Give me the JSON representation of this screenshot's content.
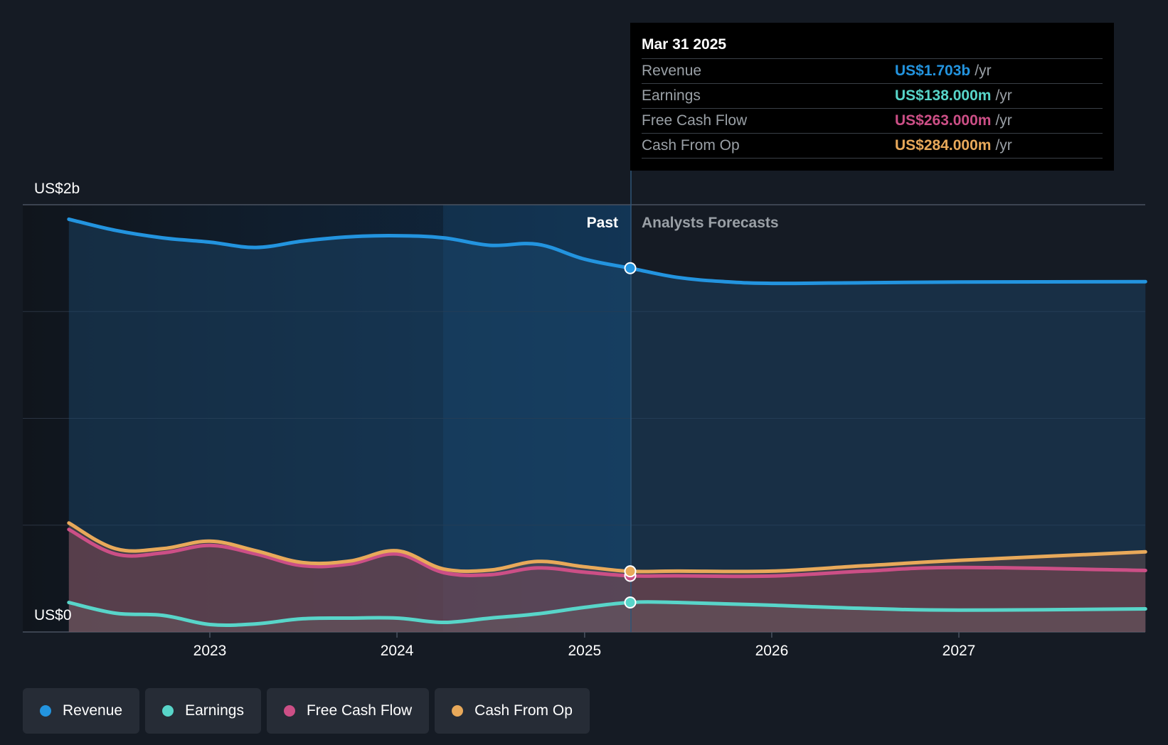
{
  "chart_data": {
    "type": "area",
    "y_unit_labels": {
      "top": "US$2b",
      "bottom": "US$0"
    },
    "ylim": [
      0,
      2000
    ],
    "x_ticks": [
      "2023",
      "2024",
      "2025",
      "2026",
      "2027"
    ],
    "past_label": "Past",
    "forecast_label": "Analysts Forecasts",
    "divider_date": "2025-03-31",
    "series": [
      {
        "name": "Revenue",
        "color": "#2394df",
        "points": [
          [
            "2022-04-01",
            1932
          ],
          [
            "2022-07-01",
            1880
          ],
          [
            "2022-10-01",
            1845
          ],
          [
            "2023-01-01",
            1825
          ],
          [
            "2023-04-01",
            1800
          ],
          [
            "2023-07-01",
            1830
          ],
          [
            "2023-10-01",
            1850
          ],
          [
            "2024-01-01",
            1855
          ],
          [
            "2024-04-01",
            1845
          ],
          [
            "2024-07-01",
            1810
          ],
          [
            "2024-10-01",
            1815
          ],
          [
            "2025-01-01",
            1745
          ],
          [
            "2025-03-31",
            1703
          ],
          [
            "2025-07-01",
            1660
          ],
          [
            "2025-10-01",
            1640
          ],
          [
            "2026-01-01",
            1632
          ],
          [
            "2026-07-01",
            1635
          ],
          [
            "2027-01-01",
            1638
          ],
          [
            "2027-12-31",
            1640
          ]
        ]
      },
      {
        "name": "Earnings",
        "color": "#58d5c9",
        "points": [
          [
            "2022-04-01",
            138
          ],
          [
            "2022-07-01",
            88
          ],
          [
            "2022-10-01",
            78
          ],
          [
            "2023-01-01",
            35
          ],
          [
            "2023-04-01",
            38
          ],
          [
            "2023-07-01",
            62
          ],
          [
            "2023-10-01",
            65
          ],
          [
            "2024-01-01",
            65
          ],
          [
            "2024-04-01",
            45
          ],
          [
            "2024-07-01",
            65
          ],
          [
            "2024-10-01",
            85
          ],
          [
            "2025-01-01",
            115
          ],
          [
            "2025-03-31",
            138
          ],
          [
            "2025-07-01",
            138
          ],
          [
            "2026-01-01",
            125
          ],
          [
            "2026-07-01",
            110
          ],
          [
            "2027-01-01",
            102
          ],
          [
            "2027-12-31",
            108
          ]
        ]
      },
      {
        "name": "Free Cash Flow",
        "color": "#cc4f86",
        "points": [
          [
            "2022-04-01",
            480
          ],
          [
            "2022-07-01",
            365
          ],
          [
            "2022-10-01",
            370
          ],
          [
            "2023-01-01",
            405
          ],
          [
            "2023-04-01",
            365
          ],
          [
            "2023-07-01",
            310
          ],
          [
            "2023-10-01",
            318
          ],
          [
            "2024-01-01",
            365
          ],
          [
            "2024-04-01",
            278
          ],
          [
            "2024-07-01",
            268
          ],
          [
            "2024-10-01",
            300
          ],
          [
            "2025-01-01",
            280
          ],
          [
            "2025-03-31",
            263
          ],
          [
            "2025-07-01",
            263
          ],
          [
            "2026-01-01",
            262
          ],
          [
            "2026-07-01",
            285
          ],
          [
            "2027-01-01",
            302
          ],
          [
            "2027-12-31",
            288
          ]
        ]
      },
      {
        "name": "Cash From Op",
        "color": "#e8a95a",
        "points": [
          [
            "2022-04-01",
            510
          ],
          [
            "2022-07-01",
            390
          ],
          [
            "2022-10-01",
            390
          ],
          [
            "2023-01-01",
            425
          ],
          [
            "2023-04-01",
            380
          ],
          [
            "2023-07-01",
            325
          ],
          [
            "2023-10-01",
            332
          ],
          [
            "2024-01-01",
            380
          ],
          [
            "2024-04-01",
            295
          ],
          [
            "2024-07-01",
            290
          ],
          [
            "2024-10-01",
            330
          ],
          [
            "2025-01-01",
            305
          ],
          [
            "2025-03-31",
            284
          ],
          [
            "2025-07-01",
            285
          ],
          [
            "2026-01-01",
            285
          ],
          [
            "2026-07-01",
            310
          ],
          [
            "2027-01-01",
            335
          ],
          [
            "2027-12-31",
            375
          ]
        ]
      }
    ]
  },
  "tooltip": {
    "date": "Mar 31 2025",
    "rows": [
      {
        "label": "Revenue",
        "value": "US$1.703b",
        "unit": "/yr",
        "color": "#2394df"
      },
      {
        "label": "Earnings",
        "value": "US$138.000m",
        "unit": "/yr",
        "color": "#58d5c9"
      },
      {
        "label": "Free Cash Flow",
        "value": "US$263.000m",
        "unit": "/yr",
        "color": "#cc4f86"
      },
      {
        "label": "Cash From Op",
        "value": "US$284.000m",
        "unit": "/yr",
        "color": "#e8a95a"
      }
    ]
  },
  "legend": [
    {
      "label": "Revenue",
      "color": "#2394df"
    },
    {
      "label": "Earnings",
      "color": "#58d5c9"
    },
    {
      "label": "Free Cash Flow",
      "color": "#cc4f86"
    },
    {
      "label": "Cash From Op",
      "color": "#e8a95a"
    }
  ]
}
